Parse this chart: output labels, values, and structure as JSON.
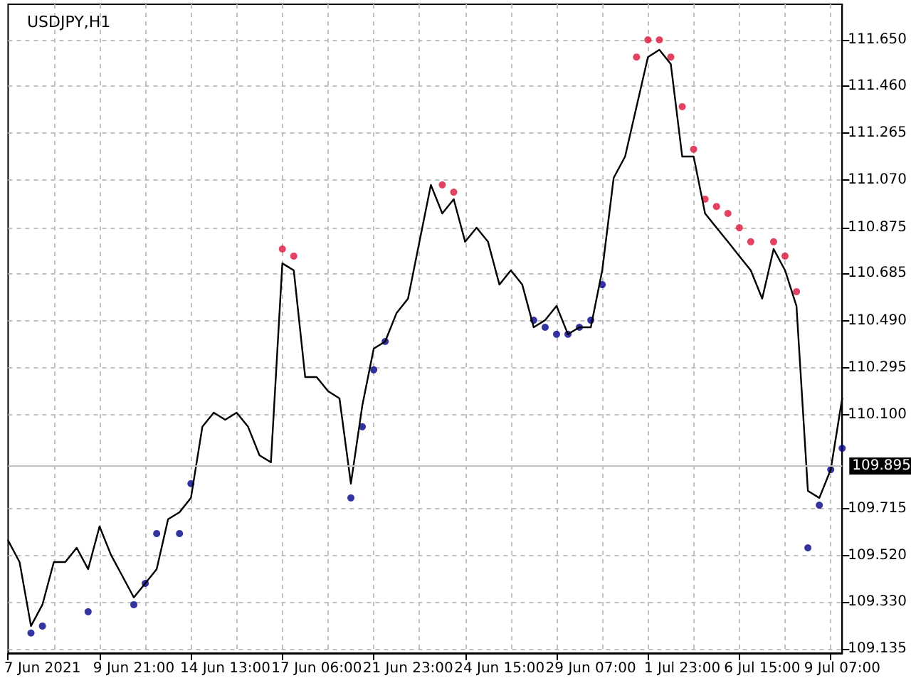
{
  "chart_data": {
    "type": "line",
    "title": "USDJPY,H1",
    "categories": [
      null,
      null,
      null,
      "7 Jun 2021",
      null,
      null,
      null,
      null,
      null,
      null,
      null,
      "9 Jun 21:00",
      null,
      null,
      null,
      null,
      null,
      null,
      null,
      "14 Jun 13:00",
      null,
      null,
      null,
      null,
      null,
      null,
      null,
      "17 Jun 06:00",
      null,
      null,
      null,
      null,
      null,
      null,
      null,
      "21 Jun 23:00",
      null,
      null,
      null,
      null,
      null,
      null,
      null,
      "24 Jun 15:00",
      null,
      null,
      null,
      null,
      null,
      null,
      null,
      "29 Jun 07:00",
      null,
      null,
      null,
      null,
      null,
      null,
      null,
      "1 Jul 23:00",
      null,
      null,
      null,
      null,
      null,
      null,
      "6 Jul 15:00",
      null,
      null,
      null,
      null,
      null,
      null,
      "9 Jul 07:00"
    ],
    "series": [
      {
        "color": "#000000",
        "marker": "none",
        "values": [
          109.582,
          109.493,
          109.229,
          109.317,
          109.493,
          109.493,
          109.552,
          109.464,
          109.64,
          109.523,
          109.435,
          109.347,
          109.405,
          109.464,
          109.67,
          109.699,
          109.758,
          110.052,
          110.11,
          110.081,
          110.11,
          110.052,
          109.934,
          109.905,
          110.727,
          110.698,
          110.257,
          110.257,
          110.199,
          110.169,
          109.817,
          110.14,
          110.375,
          110.404,
          110.522,
          110.581,
          110.816,
          111.051,
          110.933,
          110.992,
          110.816,
          110.874,
          110.816,
          110.639,
          110.698,
          110.639,
          110.463,
          110.492,
          110.551,
          110.434,
          110.463,
          110.463,
          110.698,
          111.08,
          111.168,
          111.374,
          111.579,
          111.609,
          111.55,
          111.168,
          111.168,
          110.933,
          110.874,
          110.816,
          110.757,
          110.698,
          110.581,
          110.786,
          110.698,
          110.551,
          109.787,
          109.758,
          109.875,
          110.169
        ]
      },
      {
        "type": "scatter",
        "color": "#dc143c",
        "marker": "circle",
        "values": [
          null,
          null,
          null,
          null,
          null,
          null,
          null,
          null,
          null,
          null,
          null,
          null,
          null,
          null,
          null,
          null,
          null,
          null,
          null,
          null,
          null,
          null,
          null,
          null,
          110.786,
          110.757,
          null,
          null,
          null,
          null,
          null,
          null,
          null,
          null,
          null,
          null,
          null,
          null,
          111.051,
          111.021,
          null,
          null,
          null,
          null,
          null,
          null,
          null,
          null,
          null,
          null,
          null,
          null,
          null,
          null,
          null,
          111.579,
          111.65,
          111.65,
          111.579,
          111.374,
          111.198,
          110.992,
          110.962,
          110.933,
          110.874,
          110.816,
          null,
          110.816,
          110.757,
          110.61,
          null,
          null,
          null,
          null
        ]
      },
      {
        "type": "scatter",
        "color": "#00008b",
        "marker": "circle",
        "values": [
          null,
          null,
          109.2,
          109.229,
          null,
          null,
          null,
          109.288,
          null,
          null,
          null,
          109.317,
          109.405,
          109.611,
          null,
          109.611,
          109.817,
          null,
          null,
          null,
          null,
          null,
          null,
          null,
          null,
          null,
          null,
          null,
          null,
          null,
          109.758,
          110.052,
          110.287,
          110.404,
          null,
          null,
          null,
          null,
          null,
          null,
          null,
          null,
          null,
          null,
          null,
          null,
          110.492,
          110.463,
          110.434,
          110.434,
          110.463,
          110.492,
          110.639,
          null,
          null,
          null,
          null,
          null,
          null,
          null,
          null,
          null,
          null,
          null,
          null,
          null,
          null,
          null,
          null,
          null,
          109.552,
          109.728,
          109.875,
          109.963
        ]
      }
    ],
    "ylim": [
      109.117,
      111.797
    ],
    "yticks": [
      {
        "value": 109.135,
        "label": "109.135"
      },
      {
        "value": 109.33,
        "label": "109.330"
      },
      {
        "value": 109.52,
        "label": "109.520"
      },
      {
        "value": 109.715,
        "label": "109.715"
      },
      {
        "value": 110.1,
        "label": "110.100"
      },
      {
        "value": 110.295,
        "label": "110.295"
      },
      {
        "value": 110.49,
        "label": "110.490"
      },
      {
        "value": 110.685,
        "label": "110.685"
      },
      {
        "value": 110.875,
        "label": "110.875"
      },
      {
        "value": 111.07,
        "label": "111.070"
      },
      {
        "value": 111.265,
        "label": "111.265"
      },
      {
        "value": 111.46,
        "label": "111.460"
      },
      {
        "value": 111.65,
        "label": "111.650"
      }
    ],
    "ref_lines": [
      {
        "axis": "y",
        "value": 109.895,
        "label": "109.895",
        "color": "#c0c0c0"
      }
    ],
    "grid": true,
    "line_style": "solid"
  }
}
